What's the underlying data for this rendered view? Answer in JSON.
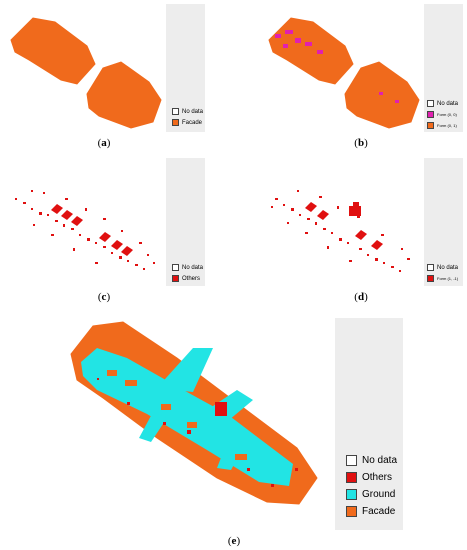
{
  "colors": {
    "no_data": "#ffffff",
    "facade": "#f06a1c",
    "form_magenta": "#e020b0",
    "others": "#e01010",
    "ground": "#22e4e4",
    "frame_bg": "#ededed",
    "plot_bg": "#ffffff"
  },
  "panels": [
    {
      "id": "a",
      "caption": "a",
      "legend": [
        {
          "label": "No data",
          "color_key": "no_data"
        },
        {
          "label": "Facade",
          "color_key": "facade"
        }
      ]
    },
    {
      "id": "b",
      "caption": "b",
      "legend": [
        {
          "label": "No data",
          "color_key": "no_data"
        },
        {
          "label": "Form (0, 0)",
          "color_key": "form_magenta"
        },
        {
          "label": "Form (0, 1)",
          "color_key": "facade"
        }
      ]
    },
    {
      "id": "c",
      "caption": "c",
      "legend": [
        {
          "label": "No data",
          "color_key": "no_data"
        },
        {
          "label": "Others",
          "color_key": "others"
        }
      ]
    },
    {
      "id": "d",
      "caption": "d",
      "legend": [
        {
          "label": "No data",
          "color_key": "no_data"
        },
        {
          "label": "Form (1, -1)",
          "color_key": "others"
        }
      ]
    },
    {
      "id": "e",
      "caption": "e",
      "legend": [
        {
          "label": "No data",
          "color_key": "no_data"
        },
        {
          "label": "Others",
          "color_key": "others"
        },
        {
          "label": "Ground",
          "color_key": "ground"
        },
        {
          "label": "Facade",
          "color_key": "facade"
        }
      ]
    }
  ]
}
